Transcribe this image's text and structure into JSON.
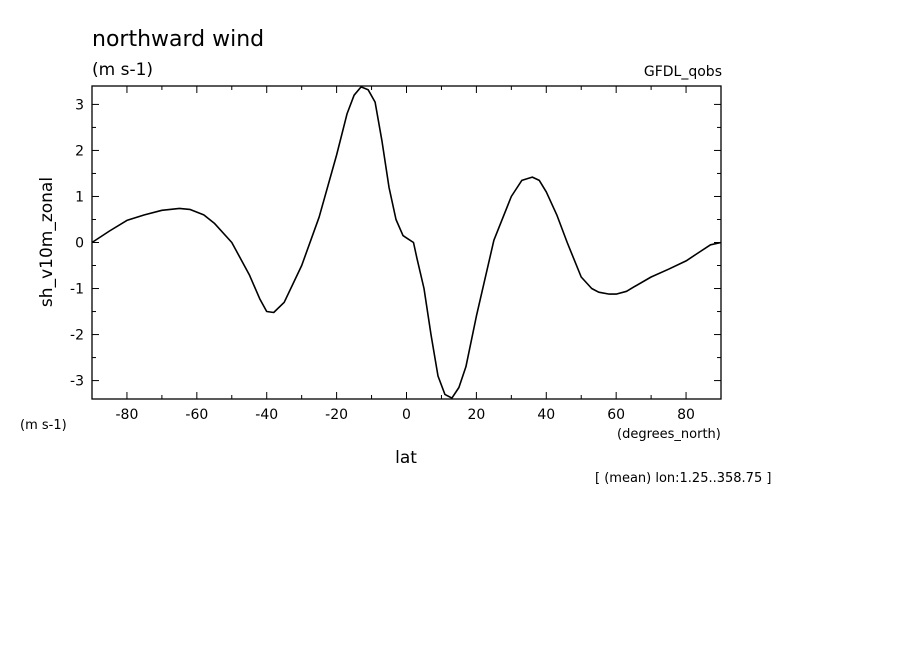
{
  "chart_data": {
    "type": "line",
    "title": "northward wind",
    "title_units": "(m s-1)",
    "source_label": "GFDL_qobs",
    "xlabel": "lat",
    "xlabel_units": "(degrees_north)",
    "ylabel": "sh_v10m_zonal",
    "ylabel_units": "(m s-1)",
    "footnote": "[ (mean) lon:1.25..358.75 ]",
    "xlim": [
      -90,
      90
    ],
    "ylim": [
      -3.4,
      3.4
    ],
    "x_ticks": [
      -80,
      -60,
      -40,
      -20,
      0,
      20,
      40,
      60,
      80
    ],
    "y_ticks": [
      -3,
      -2,
      -1,
      0,
      1,
      2,
      3
    ],
    "x_tick_labels": [
      "-80",
      "-60",
      "-40",
      "-20",
      "0",
      "20",
      "40",
      "60",
      "80"
    ],
    "y_tick_labels": [
      "-3",
      "-2",
      "-1",
      "0",
      "1",
      "2",
      "3"
    ],
    "grid": false,
    "series": [
      {
        "x": [
          -90,
          -85,
          -80,
          -75,
          -70,
          -65,
          -62,
          -58,
          -55,
          -50,
          -45,
          -42,
          -40,
          -38,
          -35,
          -30,
          -25,
          -20,
          -17,
          -15,
          -13,
          -11,
          -9,
          -7,
          -5,
          -3,
          -1,
          0,
          2,
          3,
          5,
          7,
          9,
          11,
          13,
          15,
          17,
          20,
          25,
          30,
          33,
          36,
          38,
          40,
          43,
          46,
          50,
          53,
          55,
          58,
          60,
          63,
          65,
          70,
          75,
          80,
          83,
          87,
          90
        ],
        "y": [
          0.0,
          0.25,
          0.48,
          0.6,
          0.7,
          0.74,
          0.72,
          0.6,
          0.42,
          0.0,
          -0.7,
          -1.22,
          -1.5,
          -1.52,
          -1.3,
          -0.5,
          0.55,
          1.9,
          2.8,
          3.2,
          3.38,
          3.32,
          3.05,
          2.2,
          1.2,
          0.5,
          0.15,
          0.1,
          0.0,
          -0.35,
          -1.0,
          -2.0,
          -2.9,
          -3.3,
          -3.38,
          -3.15,
          -2.7,
          -1.6,
          0.05,
          1.0,
          1.35,
          1.42,
          1.35,
          1.1,
          0.6,
          0.0,
          -0.75,
          -1.0,
          -1.08,
          -1.12,
          -1.12,
          -1.06,
          -0.97,
          -0.75,
          -0.58,
          -0.4,
          -0.25,
          -0.05,
          0.0
        ]
      }
    ]
  }
}
